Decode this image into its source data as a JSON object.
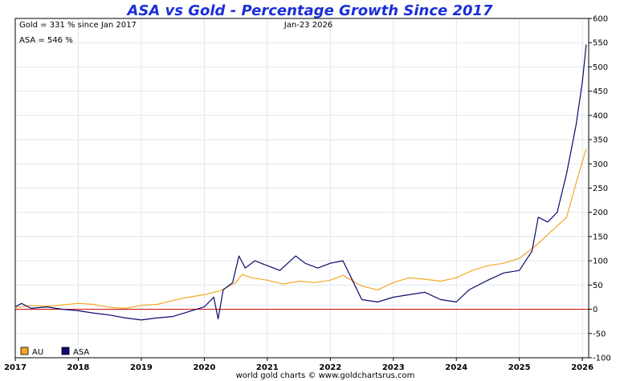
{
  "chart_data": {
    "type": "line",
    "title": "ASA vs Gold - Percentage Growth Since 2017",
    "date_label": "Jan-23  2026",
    "annotations": [
      "Gold = 331 % since Jan 2017",
      "ASA = 546 %"
    ],
    "footer": "world gold charts © www.goldchartsrus.com",
    "ylim": [
      -100,
      600
    ],
    "yticks": [
      -100,
      -50,
      0,
      50,
      100,
      150,
      200,
      250,
      300,
      350,
      400,
      450,
      500,
      550,
      600
    ],
    "ytick_labels": [
      "-100",
      "-50",
      "0",
      "50",
      "100",
      "150",
      "200",
      "250",
      "300",
      "350",
      "400",
      "450",
      "500",
      "550",
      "600"
    ],
    "xlim": [
      2017.0,
      2026.1
    ],
    "xticks": [
      2017,
      2018,
      2019,
      2020,
      2021,
      2022,
      2023,
      2024,
      2025,
      2026
    ],
    "xtick_labels": [
      "2017",
      "2018",
      "2019",
      "2020",
      "2021",
      "2022",
      "2023",
      "2024",
      "2025",
      "2026"
    ],
    "grid": true,
    "zero_line": 0,
    "legend_position": "bottom-left",
    "series": [
      {
        "name": "AU",
        "color": "#f5a623",
        "x": [
          2017.0,
          2017.25,
          2017.5,
          2017.75,
          2018.0,
          2018.25,
          2018.5,
          2018.75,
          2019.0,
          2019.25,
          2019.5,
          2019.75,
          2020.0,
          2020.25,
          2020.5,
          2020.6,
          2020.75,
          2021.0,
          2021.25,
          2021.5,
          2021.75,
          2022.0,
          2022.2,
          2022.5,
          2022.75,
          2023.0,
          2023.25,
          2023.5,
          2023.75,
          2024.0,
          2024.25,
          2024.5,
          2024.75,
          2025.0,
          2025.25,
          2025.5,
          2025.75,
          2025.9,
          2026.06
        ],
        "values": [
          3,
          8,
          6,
          9,
          12,
          10,
          4,
          2,
          8,
          10,
          18,
          25,
          30,
          38,
          55,
          72,
          65,
          60,
          52,
          58,
          55,
          60,
          70,
          48,
          40,
          55,
          65,
          62,
          58,
          65,
          80,
          90,
          95,
          105,
          130,
          160,
          190,
          260,
          331
        ]
      },
      {
        "name": "ASA",
        "color": "#0a0a6e",
        "x": [
          2017.0,
          2017.1,
          2017.25,
          2017.5,
          2017.75,
          2018.0,
          2018.25,
          2018.5,
          2018.75,
          2019.0,
          2019.25,
          2019.5,
          2019.75,
          2020.0,
          2020.15,
          2020.22,
          2020.3,
          2020.45,
          2020.55,
          2020.65,
          2020.8,
          2021.0,
          2021.2,
          2021.45,
          2021.6,
          2021.8,
          2022.0,
          2022.2,
          2022.35,
          2022.5,
          2022.75,
          2023.0,
          2023.25,
          2023.5,
          2023.75,
          2024.0,
          2024.2,
          2024.5,
          2024.75,
          2025.0,
          2025.2,
          2025.3,
          2025.45,
          2025.6,
          2025.75,
          2025.9,
          2026.0,
          2026.06
        ],
        "values": [
          5,
          12,
          2,
          5,
          0,
          -3,
          -8,
          -12,
          -18,
          -22,
          -18,
          -15,
          -5,
          5,
          25,
          -20,
          40,
          55,
          110,
          85,
          100,
          90,
          80,
          110,
          95,
          85,
          95,
          100,
          60,
          20,
          15,
          25,
          30,
          35,
          20,
          15,
          40,
          60,
          75,
          80,
          120,
          190,
          180,
          200,
          280,
          380,
          470,
          546
        ]
      }
    ]
  }
}
